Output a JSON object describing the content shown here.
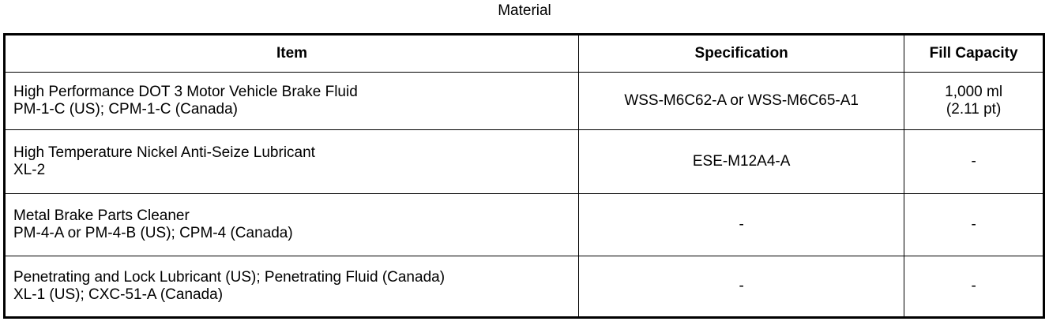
{
  "title": "Material",
  "table": {
    "headers": [
      "Item",
      "Specification",
      "Fill Capacity"
    ],
    "rows": [
      {
        "item_line1": "High Performance DOT 3 Motor Vehicle Brake Fluid",
        "item_line2": "PM-1-C (US); CPM-1-C (Canada)",
        "specification": "WSS-M6C62-A or WSS-M6C65-A1",
        "capacity_line1": "1,000 ml",
        "capacity_line2": "(2.11 pt)"
      },
      {
        "item_line1": "High Temperature Nickel Anti-Seize Lubricant",
        "item_line2": "XL-2",
        "specification": "ESE-M12A4-A",
        "capacity_line1": "-",
        "capacity_line2": ""
      },
      {
        "item_line1": "Metal Brake Parts Cleaner",
        "item_line2": "PM-4-A or PM-4-B (US); CPM-4 (Canada)",
        "specification": "-",
        "capacity_line1": "-",
        "capacity_line2": ""
      },
      {
        "item_line1": "Penetrating and Lock Lubricant (US); Penetrating Fluid (Canada)",
        "item_line2": "XL-1 (US); CXC-51-A (Canada)",
        "specification": "-",
        "capacity_line1": "-",
        "capacity_line2": ""
      }
    ]
  }
}
